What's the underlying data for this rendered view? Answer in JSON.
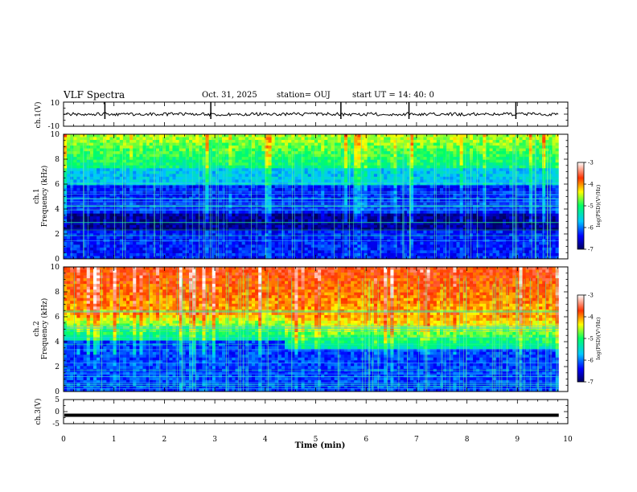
{
  "header": {
    "title": "VLF Spectra",
    "date": "Oct. 31, 2025",
    "station": "station= OUJ",
    "start": "start  UT  =   14: 40: 0"
  },
  "chart_data": [
    {
      "type": "line",
      "name": "ch1-waveform",
      "ylabel": "ch.1(V)",
      "ylim": [
        -10,
        10
      ],
      "yticks": [
        "10",
        "-10"
      ],
      "baseline": 0,
      "spikes_min": [
        0.82,
        2.92,
        5.5,
        6.85,
        8.97
      ]
    },
    {
      "type": "heatmap",
      "name": "ch1-spectrogram",
      "ylabel": "ch.1 Frequency (kHz)",
      "ylim": [
        0,
        10
      ],
      "yticks": [
        "0",
        "2",
        "4",
        "6",
        "8",
        "10"
      ],
      "colorbar": {
        "label": "log(PSD)(V²/Hz)",
        "range": [
          -7,
          -3
        ],
        "ticks": [
          "-3",
          "-4",
          "-5",
          "-6",
          "-7"
        ]
      }
    },
    {
      "type": "heatmap",
      "name": "ch2-spectrogram",
      "ylabel": "ch.2 Frequency (kHz)",
      "ylim": [
        0,
        10
      ],
      "yticks": [
        "0",
        "2",
        "4",
        "6",
        "8",
        "10"
      ],
      "colorbar": {
        "label": "log(PSD)(V²/Hz)",
        "range": [
          -7,
          -3
        ],
        "ticks": [
          "-3",
          "-4",
          "-5",
          "-6",
          "-7"
        ]
      }
    },
    {
      "type": "line",
      "name": "ch3-waveform",
      "ylabel": "ch.3(V)",
      "ylim": [
        -5,
        5
      ],
      "yticks": [
        "5",
        "0",
        "-5"
      ],
      "baseline": -1.5
    }
  ],
  "xaxis": {
    "label": "Time (min)",
    "range": [
      0,
      10
    ],
    "ticks": [
      "0",
      "1",
      "2",
      "3",
      "4",
      "5",
      "6",
      "7",
      "8",
      "9",
      "10"
    ],
    "data_end": 9.82
  }
}
